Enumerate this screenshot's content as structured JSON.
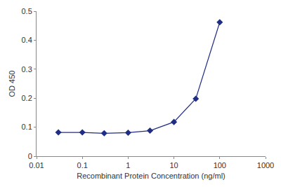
{
  "chart_data": {
    "type": "line",
    "x_label": "Recombinant Protein Concentration (ng/ml)",
    "y_label": "OD 450",
    "x": [
      0.03,
      0.1,
      0.3,
      1,
      3,
      10,
      30,
      100
    ],
    "values": [
      0.082,
      0.082,
      0.079,
      0.081,
      0.088,
      0.118,
      0.198,
      0.462
    ],
    "color": "#1f2d86",
    "marker": "diamond",
    "line_style": "solid",
    "log": "x",
    "grid": false,
    "xlim": [
      0.01,
      1000
    ],
    "xticks": [
      0.01,
      0.1,
      1,
      10,
      100,
      1000
    ],
    "ylim": [
      0,
      0.5
    ],
    "yticks": [
      0,
      0.1,
      0.2,
      0.3,
      0.4,
      0.5
    ]
  }
}
